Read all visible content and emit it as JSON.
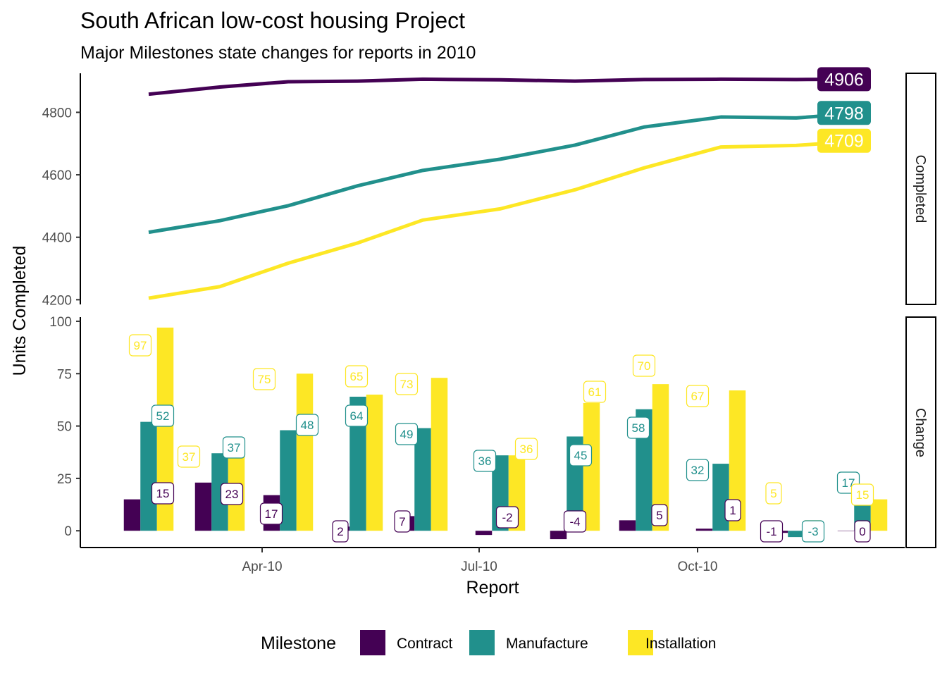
{
  "title": "South African low-cost housing Project",
  "subtitle": "Major Milestones state changes for reports in 2010",
  "colors": {
    "Contract": "#440154",
    "Manufacture": "#21908C",
    "Installation": "#FDE725"
  },
  "chart_data": {
    "type": "line+bar",
    "xlabel": "Report",
    "ylabel": "Units Completed",
    "x_ticks": [
      "Apr-10",
      "Jul-10",
      "Oct-10"
    ],
    "legend": {
      "title": "Milestone",
      "position": "bottom",
      "entries": [
        "Contract",
        "Manufacture",
        "Installation"
      ]
    },
    "facets": [
      {
        "strip": "Completed",
        "type": "line",
        "y_ticks": [
          4200,
          4400,
          4600,
          4800
        ],
        "ylim": [
          4185,
          4925
        ],
        "series": [
          {
            "name": "Contract",
            "values": [
              4858,
              4881,
              4898,
              4900,
              4906,
              4904,
              4900,
              4905,
              4906,
              4905,
              4906
            ],
            "end_label": "4906"
          },
          {
            "name": "Manufacture",
            "values": [
              4416,
              4453,
              4501,
              4565,
              4614,
              4650,
              4695,
              4753,
              4785,
              4782,
              4798
            ],
            "end_label": "4798"
          },
          {
            "name": "Installation",
            "values": [
              4205,
              4242,
              4317,
              4382,
              4455,
              4491,
              4552,
              4622,
              4689,
              4694,
              4709
            ],
            "end_label": "4709"
          }
        ]
      },
      {
        "strip": "Change",
        "type": "bar",
        "y_ticks": [
          0,
          25,
          50,
          75,
          100
        ],
        "ylim": [
          -8,
          102
        ],
        "series": [
          {
            "name": "Contract",
            "values": [
              15,
              23,
              17,
              2,
              7,
              -2,
              -4,
              5,
              1,
              -1,
              0
            ],
            "labels": [
              "15",
              "23",
              "17",
              "2",
              "7",
              "-2",
              "-4",
              "5",
              "1",
              "-1",
              "0"
            ]
          },
          {
            "name": "Manufacture",
            "values": [
              52,
              37,
              48,
              64,
              49,
              36,
              45,
              58,
              32,
              -3,
              17
            ],
            "labels": [
              "52",
              "37",
              "48",
              "64",
              "49",
              "36",
              "45",
              "58",
              "32",
              "-3",
              "17"
            ]
          },
          {
            "name": "Installation",
            "values": [
              97,
              37,
              75,
              65,
              73,
              36,
              61,
              70,
              67,
              5,
              15
            ],
            "labels": [
              "97",
              "37",
              "75",
              "65",
              "73",
              "36",
              "61",
              "70",
              "67",
              "5",
              "15"
            ]
          }
        ]
      }
    ]
  }
}
